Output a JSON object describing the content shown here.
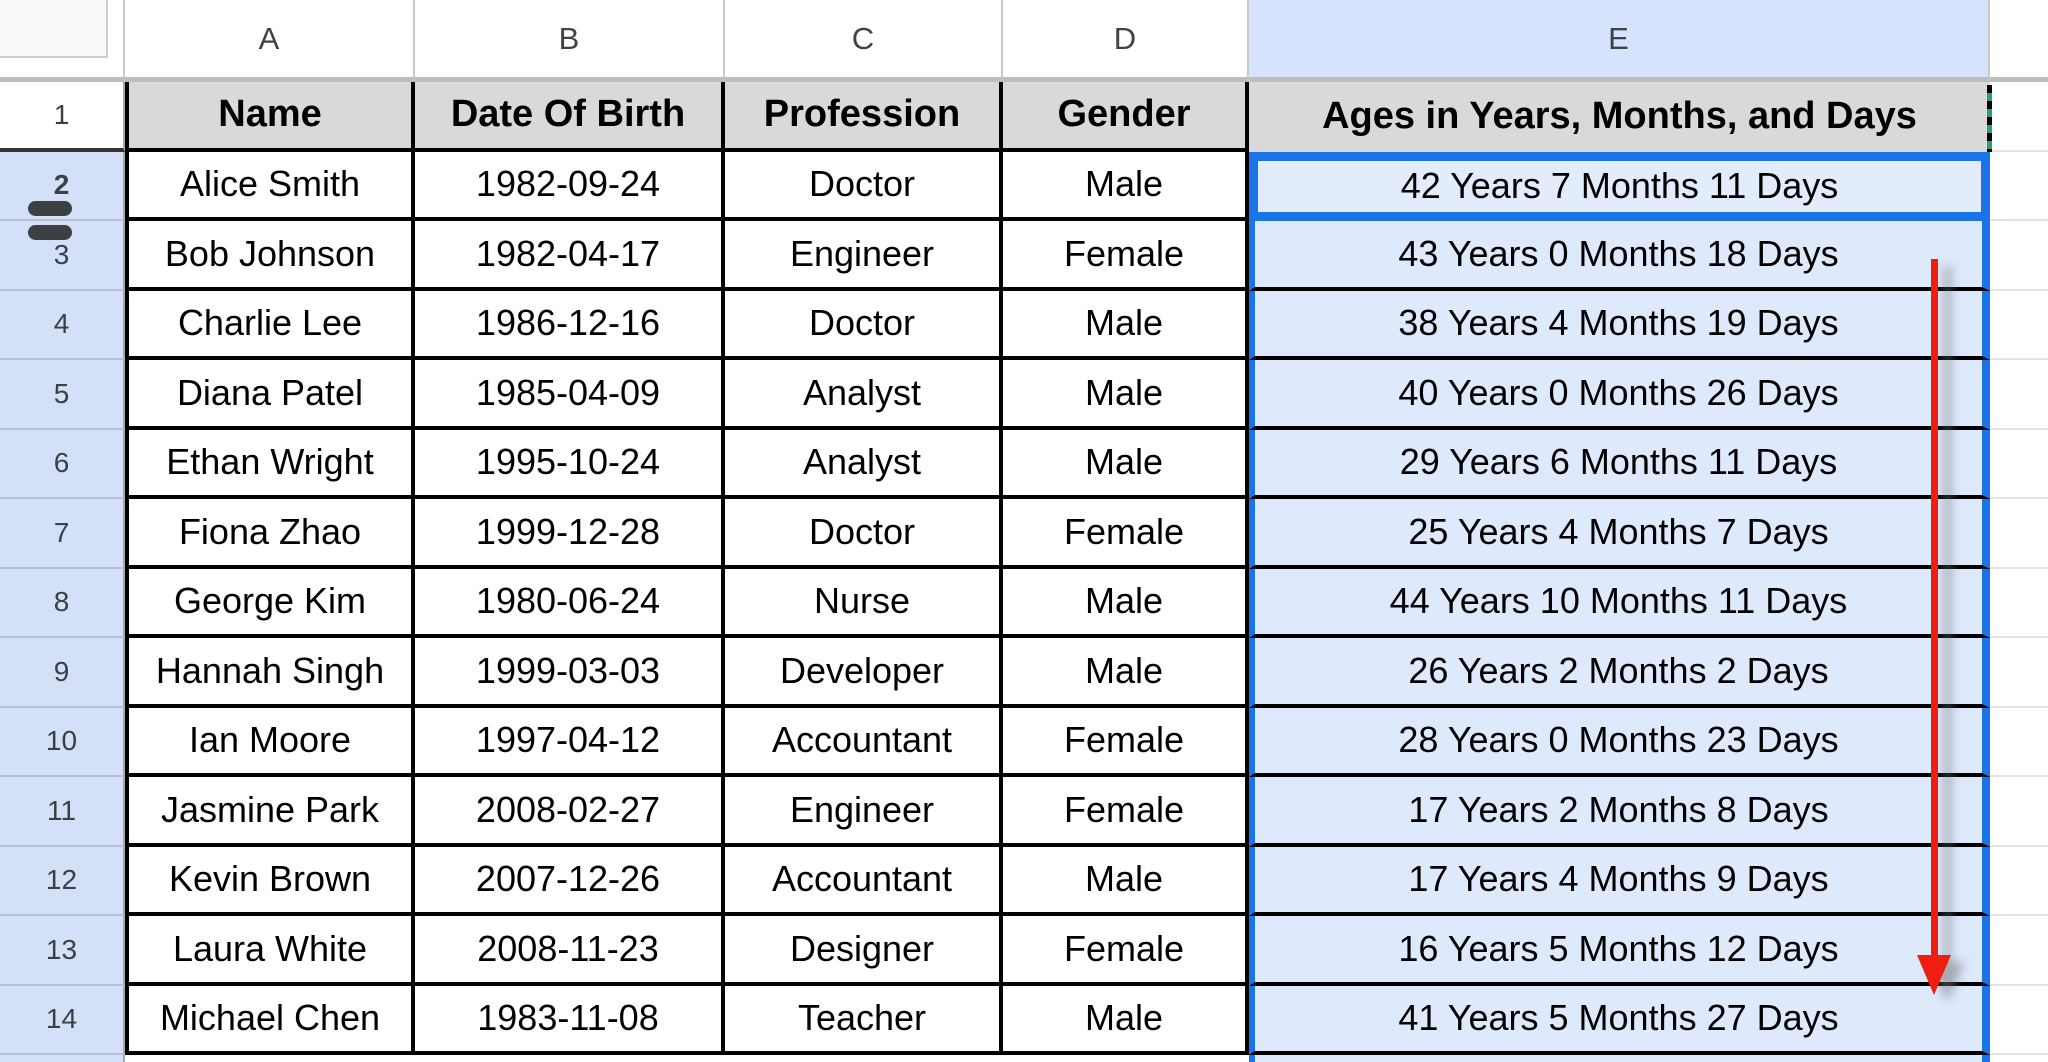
{
  "sheet": {
    "column_letters": [
      "A",
      "B",
      "C",
      "D",
      "E"
    ],
    "selected_column": "E",
    "selection": {
      "active_cell": "E2"
    },
    "header_row": {
      "number": "1",
      "cells": [
        "Name",
        "Date Of Birth",
        "Profession",
        "Gender",
        "Ages in Years, Months, and Days"
      ]
    },
    "rows": [
      {
        "num": "2",
        "name": "Alice Smith",
        "dob": "1982-09-24",
        "profession": "Doctor",
        "gender": "Male",
        "age": "42 Years 7 Months 11 Days"
      },
      {
        "num": "3",
        "name": "Bob Johnson",
        "dob": "1982-04-17",
        "profession": "Engineer",
        "gender": "Female",
        "age": "43 Years 0 Months 18 Days"
      },
      {
        "num": "4",
        "name": "Charlie Lee",
        "dob": "1986-12-16",
        "profession": "Doctor",
        "gender": "Male",
        "age": "38 Years 4 Months 19 Days"
      },
      {
        "num": "5",
        "name": "Diana Patel",
        "dob": "1985-04-09",
        "profession": "Analyst",
        "gender": "Male",
        "age": "40 Years 0 Months 26 Days"
      },
      {
        "num": "6",
        "name": "Ethan Wright",
        "dob": "1995-10-24",
        "profession": "Analyst",
        "gender": "Male",
        "age": "29 Years 6 Months 11 Days"
      },
      {
        "num": "7",
        "name": "Fiona Zhao",
        "dob": "1999-12-28",
        "profession": "Doctor",
        "gender": "Female",
        "age": "25 Years 4 Months 7 Days"
      },
      {
        "num": "8",
        "name": "George Kim",
        "dob": "1980-06-24",
        "profession": "Nurse",
        "gender": "Male",
        "age": "44 Years 10 Months 11 Days"
      },
      {
        "num": "9",
        "name": "Hannah Singh",
        "dob": "1999-03-03",
        "profession": "Developer",
        "gender": "Male",
        "age": "26 Years 2 Months 2 Days"
      },
      {
        "num": "10",
        "name": "Ian Moore",
        "dob": "1997-04-12",
        "profession": "Accountant",
        "gender": "Female",
        "age": "28 Years 0 Months 23 Days"
      },
      {
        "num": "11",
        "name": "Jasmine Park",
        "dob": "2008-02-27",
        "profession": "Engineer",
        "gender": "Female",
        "age": "17 Years 2 Months 8 Days"
      },
      {
        "num": "12",
        "name": "Kevin Brown",
        "dob": "2007-12-26",
        "profession": "Accountant",
        "gender": "Male",
        "age": "17 Years 4 Months 9 Days"
      },
      {
        "num": "13",
        "name": "Laura White",
        "dob": "2008-11-23",
        "profession": "Designer",
        "gender": "Female",
        "age": "16 Years 5 Months 12 Days"
      },
      {
        "num": "14",
        "name": "Michael Chen",
        "dob": "1983-11-08",
        "profession": "Teacher",
        "gender": "Male",
        "age": "41 Years 5 Months 27 Days"
      }
    ],
    "annotations": {
      "red_arrow": "vertical red arrow pointing down over column E",
      "row_resize_handle": "double-bar drag handle between rows 2 and 3",
      "marquee": "green-black dashed segment on right edge of E1"
    },
    "colors": {
      "selection_blue": "#1a73e8",
      "selected_cell_fill": "#dfe9fc",
      "selected_header_fill": "#d5e3fc",
      "header_grey": "#d9d9d9",
      "arrow_red": "#ee1f10",
      "marquee_green": "#23a566"
    }
  }
}
